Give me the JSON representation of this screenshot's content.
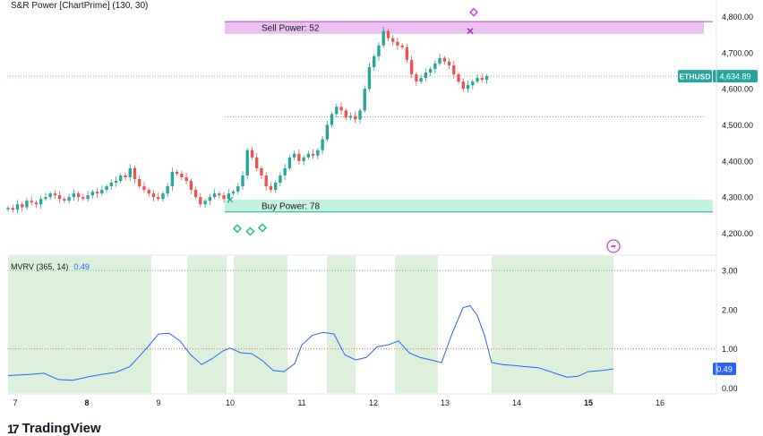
{
  "chart_data": [
    {
      "type": "candlestick",
      "title": "S&R Power [ChartPrime] (130, 30)",
      "symbol": "ETHUSD",
      "last_price": 4634.89,
      "last_price_label": "4,634.89",
      "ylim": [
        4140,
        4820
      ],
      "yticks": [
        4200,
        4300,
        4400,
        4500,
        4600,
        4700,
        4800
      ],
      "ytick_labels": [
        "4,200.00",
        "4,300.00",
        "4,400.00",
        "4,500.00",
        "4,600.00",
        "4,700.00",
        "4,800.00"
      ],
      "x_day_labels": [
        "7",
        "8",
        "9",
        "10",
        "11",
        "12",
        "13",
        "14",
        "15",
        "16"
      ],
      "x_day_start": 7,
      "x_day_end": 16.6,
      "close_series_start_day": 6.9,
      "close_series_step_days": 0.0655,
      "close_series": [
        4270,
        4265,
        4280,
        4272,
        4290,
        4285,
        4280,
        4295,
        4300,
        4310,
        4305,
        4295,
        4290,
        4300,
        4310,
        4300,
        4295,
        4305,
        4315,
        4310,
        4320,
        4330,
        4340,
        4345,
        4360,
        4355,
        4380,
        4350,
        4330,
        4320,
        4310,
        4300,
        4295,
        4310,
        4330,
        4370,
        4365,
        4355,
        4345,
        4320,
        4300,
        4280,
        4290,
        4300,
        4310,
        4305,
        4295,
        4310,
        4315,
        4330,
        4360,
        4430,
        4410,
        4380,
        4360,
        4330,
        4320,
        4340,
        4360,
        4380,
        4410,
        4420,
        4400,
        4410,
        4420,
        4415,
        4430,
        4460,
        4500,
        4530,
        4550,
        4540,
        4520,
        4525,
        4515,
        4540,
        4600,
        4660,
        4690,
        4720,
        4760,
        4740,
        4730,
        4720,
        4715,
        4680,
        4640,
        4620,
        4630,
        4645,
        4655,
        4670,
        4685,
        4675,
        4665,
        4640,
        4620,
        4600,
        4610,
        4620,
        4630,
        4625,
        4635
      ],
      "zones": [
        {
          "label": "Sell Power: 52",
          "low": 4752,
          "high": 4786,
          "color": "#e8b6f0"
        },
        {
          "label": "Buy Power: 78",
          "low": 4258,
          "high": 4293,
          "color": "#b8f0d8"
        }
      ],
      "level_lines": [
        4786,
        4522
      ],
      "dotted_level": 4634.89,
      "buy_signals": [
        {
          "day": 10.1,
          "price": 4213
        },
        {
          "day": 10.28,
          "price": 4205
        },
        {
          "day": 10.45,
          "price": 4215
        }
      ],
      "sell_signal": {
        "day": 13.4,
        "price": 4812
      },
      "sell_cross": {
        "day": 13.35,
        "price": 4760
      },
      "colors": {
        "up": "#26a69a",
        "down": "#ef5350",
        "price_badge": "#26a69a"
      }
    },
    {
      "type": "line",
      "title": "MVRV (365, 14)",
      "last_value": 0.49,
      "last_value_label": "0.49",
      "ylim": [
        -0.15,
        3.25
      ],
      "yticks": [
        0,
        1,
        2,
        3
      ],
      "ytick_labels": [
        "0.00",
        "1.00",
        "2.00",
        "3.00"
      ],
      "reference_lines": [
        3.0,
        1.0
      ],
      "x": [
        6.9,
        7.2,
        7.4,
        7.6,
        7.8,
        8.0,
        8.2,
        8.4,
        8.6,
        8.75,
        8.85,
        9.0,
        9.15,
        9.3,
        9.45,
        9.6,
        9.75,
        9.9,
        10.0,
        10.15,
        10.3,
        10.45,
        10.6,
        10.75,
        10.9,
        11.0,
        11.15,
        11.3,
        11.45,
        11.6,
        11.75,
        11.9,
        12.05,
        12.2,
        12.35,
        12.5,
        12.65,
        12.8,
        12.95,
        13.1,
        13.25,
        13.35,
        13.45,
        13.55,
        13.65,
        13.8,
        13.95,
        14.1,
        14.3,
        14.5,
        14.7,
        14.85,
        15.0,
        15.2,
        15.35
      ],
      "values": [
        0.32,
        0.35,
        0.38,
        0.22,
        0.2,
        0.28,
        0.35,
        0.4,
        0.55,
        0.85,
        1.05,
        1.38,
        1.4,
        1.2,
        0.85,
        0.6,
        0.75,
        0.95,
        1.02,
        0.9,
        0.88,
        0.7,
        0.45,
        0.42,
        0.62,
        1.1,
        1.35,
        1.42,
        1.38,
        0.85,
        0.72,
        0.78,
        1.05,
        1.1,
        1.2,
        0.9,
        0.78,
        0.72,
        0.65,
        1.4,
        2.05,
        2.1,
        1.85,
        1.35,
        0.65,
        0.6,
        0.58,
        0.55,
        0.52,
        0.4,
        0.28,
        0.3,
        0.42,
        0.45,
        0.49
      ],
      "shaded_ranges": [
        [
          6.9,
          8.9
        ],
        [
          9.4,
          9.95
        ],
        [
          10.05,
          10.8
        ],
        [
          11.35,
          11.75
        ],
        [
          12.3,
          12.9
        ],
        [
          13.65,
          15.35
        ]
      ],
      "colors": {
        "line": "#2962ff",
        "shade": "#dcf0dc",
        "ref": "#ef5350",
        "badge": "#2962ff"
      }
    }
  ],
  "brand": {
    "logo_mark": "17",
    "name": "TradingView"
  }
}
